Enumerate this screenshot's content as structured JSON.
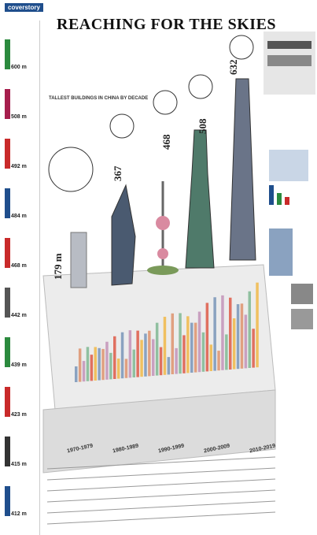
{
  "header": {
    "section": "coverstory",
    "title": "REACHING FOR THE SKIES"
  },
  "sidebar": {
    "heights": [
      "600 m",
      "508 m",
      "492 m",
      "484 m",
      "468 m",
      "442 m",
      "439 m",
      "423 m",
      "415 m",
      "412 m"
    ]
  },
  "towers": [
    "179 m",
    "367",
    "468",
    "508",
    "632"
  ],
  "chart": {
    "title": "TALLEST BUILDINGS IN CHINA BY DECADE",
    "decades": [
      "1970-1979",
      "1980-1989",
      "1990-1999",
      "2000-2009",
      "2010-2019"
    ]
  }
}
